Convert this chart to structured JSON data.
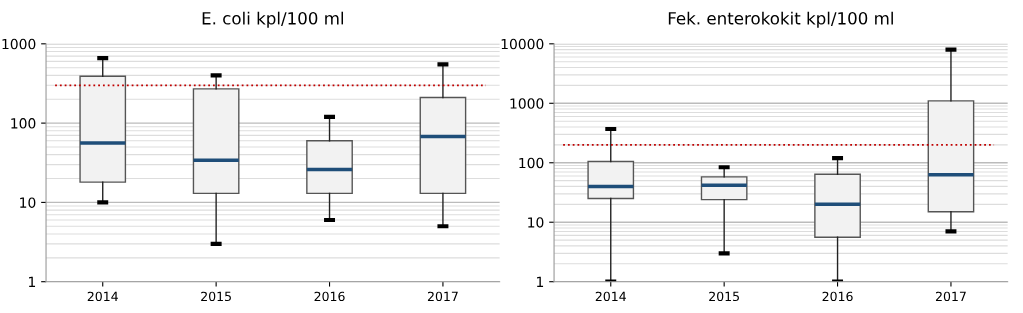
{
  "chart_data": [
    {
      "type": "box",
      "title": "E. coli kpl/100 ml",
      "categories": [
        "2014",
        "2015",
        "2016",
        "2017"
      ],
      "log": "y",
      "ylim": [
        1,
        1000
      ],
      "yticks": [
        1,
        10,
        100,
        1000
      ],
      "grid": "y",
      "color": "#f2f2f2",
      "boxes": [
        {
          "low": 10,
          "q1": 18,
          "median": 56,
          "q3": 390,
          "high": 660
        },
        {
          "low": 3,
          "q1": 13,
          "median": 34,
          "q3": 270,
          "high": 400
        },
        {
          "low": 6,
          "q1": 13,
          "median": 26,
          "q3": 60,
          "high": 120
        },
        {
          "low": 5,
          "q1": 13,
          "median": 68,
          "q3": 210,
          "high": 550
        }
      ],
      "ref_lines": [
        {
          "axis": "y",
          "value": 300,
          "color": "#c00000",
          "line_style": "dotted"
        }
      ]
    },
    {
      "type": "box",
      "title": "Fek. enterokokit kpl/100 ml",
      "categories": [
        "2014",
        "2015",
        "2016",
        "2017"
      ],
      "log": "y",
      "ylim": [
        1,
        10000
      ],
      "yticks": [
        1,
        10,
        100,
        1000,
        10000
      ],
      "grid": "y",
      "color": "#f2f2f2",
      "boxes": [
        {
          "low": 1,
          "q1": 25,
          "median": 40,
          "q3": 105,
          "high": 370
        },
        {
          "low": 3,
          "q1": 24,
          "median": 42,
          "q3": 58,
          "high": 84
        },
        {
          "low": 1,
          "q1": 5.6,
          "median": 20,
          "q3": 64,
          "high": 120
        },
        {
          "low": 7,
          "q1": 15,
          "median": 63,
          "q3": 1100,
          "high": 8000
        }
      ],
      "ref_lines": [
        {
          "axis": "y",
          "value": 200,
          "color": "#c00000",
          "line_style": "dotted"
        }
      ]
    }
  ]
}
